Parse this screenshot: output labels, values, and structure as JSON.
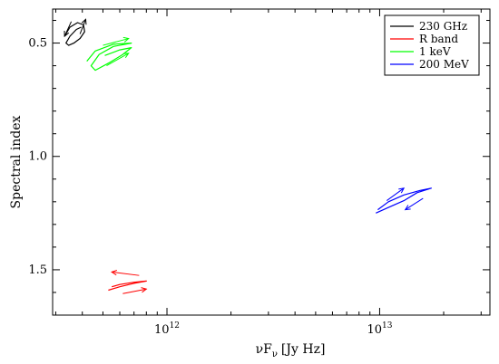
{
  "chart_data": {
    "type": "line",
    "xlabel": "νF",
    "xlabel_sub": "ν",
    "xlabel_unit": "[Jy Hz]",
    "ylabel": "Spectral index",
    "x_scale": "log",
    "y_inverted": true,
    "xlim": [
      290000000000.0,
      33000000000000.0
    ],
    "ylim": [
      0.35,
      1.7
    ],
    "yticks": [
      0.5,
      1.0,
      1.5
    ],
    "ytick_labels": [
      "0.5",
      "1.0",
      "1.5"
    ],
    "xticks": [
      1000000000000.0,
      10000000000000.0
    ],
    "xtick_base": "10",
    "xtick_exponents": [
      "12",
      "13"
    ],
    "grid": false,
    "legend_position": "top-right",
    "series": [
      {
        "name": "230 GHz",
        "color": "#000000",
        "points": [
          [
            330000000000.0,
            0.47
          ],
          [
            350000000000.0,
            0.43
          ],
          [
            380000000000.0,
            0.41
          ],
          [
            405000000000.0,
            0.42
          ],
          [
            410000000000.0,
            0.45
          ],
          [
            390000000000.0,
            0.48
          ],
          [
            365000000000.0,
            0.5
          ],
          [
            345000000000.0,
            0.51
          ],
          [
            335000000000.0,
            0.5
          ],
          [
            350000000000.0,
            0.47
          ],
          [
            375000000000.0,
            0.44
          ],
          [
            395000000000.0,
            0.43
          ]
        ],
        "arrows": [
          [
            [
              355000000000.0,
              0.405
            ],
            [
              330000000000.0,
              0.47
            ]
          ],
          [
            [
              390000000000.0,
              0.46
            ],
            [
              415000000000.0,
              0.395
            ]
          ]
        ]
      },
      {
        "name": "R band",
        "color": "#ff0000",
        "points": [
          [
            530000000000.0,
            1.59
          ],
          [
            600000000000.0,
            1.575
          ],
          [
            700000000000.0,
            1.56
          ],
          [
            800000000000.0,
            1.55
          ],
          [
            700000000000.0,
            1.555
          ],
          [
            600000000000.0,
            1.565
          ],
          [
            550000000000.0,
            1.575
          ]
        ],
        "arrows": [
          [
            [
              740000000000.0,
              1.525
            ],
            [
              550000000000.0,
              1.51
            ]
          ],
          [
            [
              620000000000.0,
              1.605
            ],
            [
              800000000000.0,
              1.585
            ]
          ]
        ]
      },
      {
        "name": "1 keV",
        "color": "#00ff00",
        "points": [
          [
            420000000000.0,
            0.58
          ],
          [
            460000000000.0,
            0.535
          ],
          [
            560000000000.0,
            0.505
          ],
          [
            680000000000.0,
            0.5
          ],
          [
            560000000000.0,
            0.515
          ],
          [
            480000000000.0,
            0.55
          ],
          [
            440000000000.0,
            0.6
          ],
          [
            460000000000.0,
            0.62
          ],
          [
            540000000000.0,
            0.585
          ],
          [
            620000000000.0,
            0.55
          ],
          [
            680000000000.0,
            0.52
          ],
          [
            600000000000.0,
            0.53
          ],
          [
            510000000000.0,
            0.555
          ]
        ],
        "arrows": [
          [
            [
              500000000000.0,
              0.51
            ],
            [
              660000000000.0,
              0.48
            ]
          ],
          [
            [
              520000000000.0,
              0.6
            ],
            [
              660000000000.0,
              0.545
            ]
          ]
        ]
      },
      {
        "name": "200 MeV",
        "color": "#0000ff",
        "points": [
          [
            9600000000000.0,
            1.25
          ],
          [
            11000000000000.0,
            1.225
          ],
          [
            13000000000000.0,
            1.195
          ],
          [
            15000000000000.0,
            1.16
          ],
          [
            17500000000000.0,
            1.14
          ],
          [
            15500000000000.0,
            1.15
          ],
          [
            13000000000000.0,
            1.17
          ],
          [
            11000000000000.0,
            1.2
          ],
          [
            9800000000000.0,
            1.235
          ]
        ],
        "arrows": [
          [
            [
              10800000000000.0,
              1.195
            ],
            [
              13000000000000.0,
              1.14
            ]
          ],
          [
            [
              16000000000000.0,
              1.185
            ],
            [
              13200000000000.0,
              1.235
            ]
          ]
        ]
      }
    ]
  }
}
